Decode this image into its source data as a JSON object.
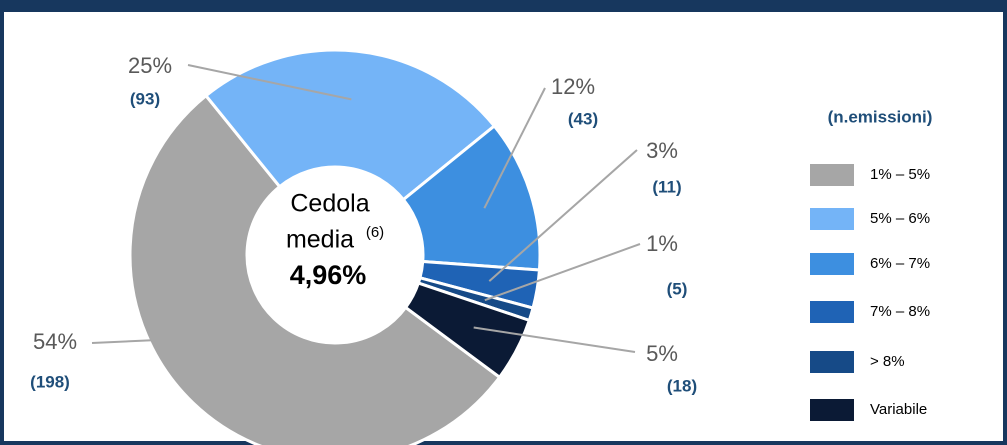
{
  "chart_data": {
    "type": "donut",
    "categories": [
      "1% – 5%",
      "5% – 6%",
      "6% – 7%",
      "7% – 8%",
      "> 8%",
      "Variabile"
    ],
    "values": [
      54,
      25,
      12,
      3,
      1,
      5
    ],
    "value_labels": [
      "54%",
      "25%",
      "12%",
      "3%",
      "1%",
      "5%"
    ],
    "counts": [
      "(198)",
      "(93)",
      "(43)",
      "(11)",
      "(5)",
      "(18)"
    ],
    "colors": [
      "#a6a6a6",
      "#74b4f7",
      "#3d8fe0",
      "#1f63b5",
      "#164a87",
      "#0b1a35"
    ],
    "legend_title": "(n.emissioni)",
    "center": {
      "line1": "Cedola",
      "line2": "media",
      "note": "(6)",
      "value": "4,96%"
    }
  }
}
